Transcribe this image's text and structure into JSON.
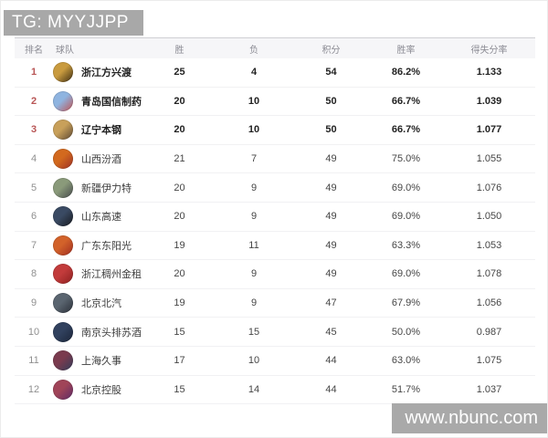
{
  "header_bar": {
    "label": "TG: MYYJJPP"
  },
  "watermark": {
    "label": "www.nbunc.com"
  },
  "colors": {
    "bar_bg": "#a8a8a8",
    "header_row_bg": "#f6f6f8",
    "top_rank_red": "#b85555",
    "rank_gray": "#8f8f8f",
    "row_separator": "#f1f1f3"
  },
  "table": {
    "columns": [
      "排名",
      "球队",
      "胜",
      "负",
      "积分",
      "胜率",
      "得失分率"
    ],
    "rows": [
      {
        "rank": "1",
        "team": "浙江方兴渡",
        "wins": "25",
        "losses": "4",
        "points": "54",
        "win_rate": "86.2%",
        "ratio": "1.133",
        "top3": true,
        "logo": "lion-logo",
        "logo_color": "#c99b3f",
        "logo_color2": "#3a2a10"
      },
      {
        "rank": "2",
        "team": "青岛国信制药",
        "wins": "20",
        "losses": "10",
        "points": "50",
        "win_rate": "66.7%",
        "ratio": "1.039",
        "top3": true,
        "logo": "eagle-logo",
        "logo_color": "#8fb4e0",
        "logo_color2": "#c05050"
      },
      {
        "rank": "3",
        "team": "辽宁本钢",
        "wins": "20",
        "losses": "10",
        "points": "50",
        "win_rate": "66.7%",
        "ratio": "1.077",
        "top3": true,
        "logo": "leopard-logo",
        "logo_color": "#c8a05a",
        "logo_color2": "#5a4632"
      },
      {
        "rank": "4",
        "team": "山西汾酒",
        "wins": "21",
        "losses": "7",
        "points": "49",
        "win_rate": "75.0%",
        "ratio": "1.055",
        "top3": false,
        "logo": "dragon-seal-logo",
        "logo_color": "#d2691e",
        "logo_color2": "#9c2f26"
      },
      {
        "rank": "5",
        "team": "新疆伊力特",
        "wins": "20",
        "losses": "9",
        "points": "49",
        "win_rate": "69.0%",
        "ratio": "1.076",
        "top3": false,
        "logo": "tiger-logo",
        "logo_color": "#8a9a7a",
        "logo_color2": "#44484a"
      },
      {
        "rank": "6",
        "team": "山东高速",
        "wins": "20",
        "losses": "9",
        "points": "49",
        "win_rate": "69.0%",
        "ratio": "1.050",
        "top3": false,
        "logo": "kirin-logo",
        "logo_color": "#3a4a63",
        "logo_color2": "#17191f"
      },
      {
        "rank": "7",
        "team": "广东东阳光",
        "wins": "19",
        "losses": "11",
        "points": "49",
        "win_rate": "63.3%",
        "ratio": "1.053",
        "top3": false,
        "logo": "tiger-head-logo",
        "logo_color": "#d2622a",
        "logo_color2": "#a02c20"
      },
      {
        "rank": "8",
        "team": "浙江稠州金租",
        "wins": "20",
        "losses": "9",
        "points": "49",
        "win_rate": "69.0%",
        "ratio": "1.078",
        "top3": false,
        "logo": "bull-logo",
        "logo_color": "#c23b3b",
        "logo_color2": "#8c1f1f"
      },
      {
        "rank": "9",
        "team": "北京北汽",
        "wins": "19",
        "losses": "9",
        "points": "47",
        "win_rate": "67.9%",
        "ratio": "1.056",
        "top3": false,
        "logo": "dragon-logo",
        "logo_color": "#5a6570",
        "logo_color2": "#2a2f38"
      },
      {
        "rank": "10",
        "team": "南京头排苏酒",
        "wins": "15",
        "losses": "15",
        "points": "45",
        "win_rate": "50.0%",
        "ratio": "0.987",
        "top3": false,
        "logo": "monkey-logo",
        "logo_color": "#31415e",
        "logo_color2": "#1a2438"
      },
      {
        "rank": "11",
        "team": "上海久事",
        "wins": "17",
        "losses": "10",
        "points": "44",
        "win_rate": "63.0%",
        "ratio": "1.075",
        "top3": false,
        "logo": "shark-logo",
        "logo_color": "#7a3b4e",
        "logo_color2": "#323c5a"
      },
      {
        "rank": "12",
        "team": "北京控股",
        "wins": "15",
        "losses": "14",
        "points": "44",
        "win_rate": "51.7%",
        "ratio": "1.037",
        "top3": false,
        "logo": "duck-logo",
        "logo_color": "#a04458",
        "logo_color2": "#5c2a66"
      }
    ]
  }
}
